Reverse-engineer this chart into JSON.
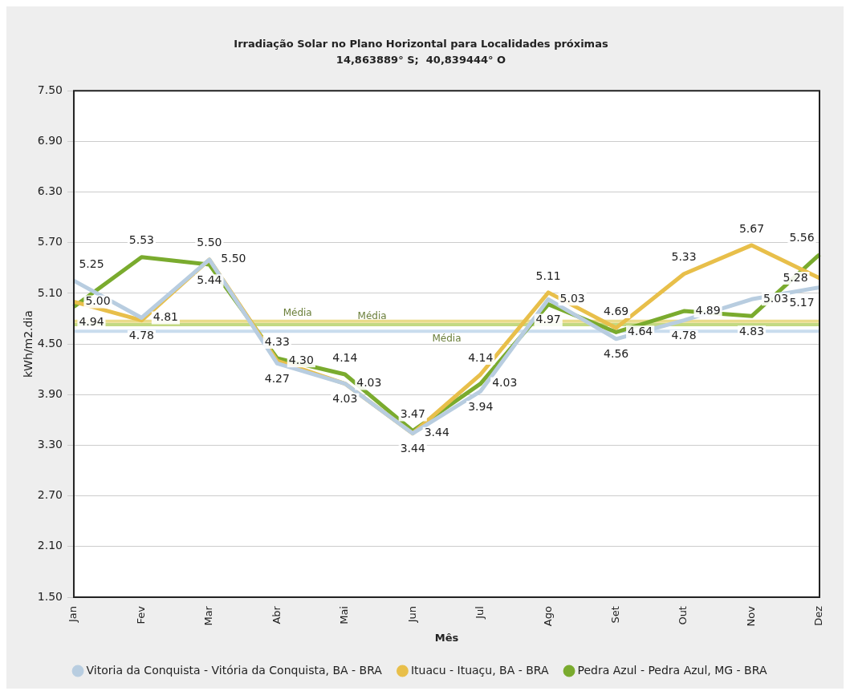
{
  "chart_data": {
    "type": "line",
    "title": "Irradiação Solar no Plano Horizontal para Localidades próximas",
    "subtitle": "14,863889° S;  40,839444° O",
    "xlabel": "Mês",
    "ylabel": "kWh/m2.dia",
    "categories": [
      "Jan",
      "Fev",
      "Mar",
      "Abr",
      "Mai",
      "Jun",
      "Jul",
      "Ago",
      "Set",
      "Out",
      "Nov",
      "Dez"
    ],
    "series": [
      {
        "name": "Vitoria da Conquista - Vitória da Conquista, BA - BRA",
        "color": "#b8cde0",
        "values": [
          5.25,
          4.81,
          5.5,
          4.27,
          4.03,
          3.44,
          3.94,
          5.03,
          4.56,
          4.78,
          5.03,
          5.17
        ],
        "value_labels": [
          "5.25",
          "4.81",
          "5.50",
          "4.27",
          "4.03",
          "3.44",
          "3.94",
          "5.03",
          "4.56",
          "4.78",
          "5.03",
          "5.17"
        ]
      },
      {
        "name": "Ituacu - Ituaçu, BA - BRA",
        "color": "#e8bf4a",
        "values": [
          5.0,
          4.78,
          5.5,
          4.3,
          4.03,
          3.44,
          4.14,
          5.11,
          4.69,
          5.33,
          5.67,
          5.28
        ],
        "value_labels": [
          "5.00",
          "4.78",
          "5.50",
          "4.30",
          "4.03",
          "3.44",
          "4.14",
          "5.11",
          "4.69",
          "5.33",
          "5.67",
          "5.28"
        ]
      },
      {
        "name": "Pedra Azul - Pedra Azul, MG - BRA",
        "color": "#7aab2e",
        "values": [
          4.94,
          5.53,
          5.44,
          4.33,
          4.14,
          3.47,
          4.03,
          4.97,
          4.64,
          4.89,
          4.83,
          5.56
        ],
        "value_labels": [
          "4.94",
          "5.53",
          "5.44",
          "4.33",
          "4.14",
          "3.47",
          "4.03",
          "4.97",
          "4.64",
          "4.89",
          "4.83",
          "5.56"
        ]
      }
    ],
    "ref_lines": [
      {
        "axis": "y",
        "value": 4.65,
        "label": "Média",
        "color": "#c9dcee"
      },
      {
        "axis": "y",
        "value": 4.77,
        "label": "Média",
        "color": "#eadb8a"
      },
      {
        "axis": "y",
        "value": 4.73,
        "label": "Média",
        "color": "#c3d982"
      }
    ],
    "ylim": [
      1.5,
      7.5
    ],
    "yticks": [
      "1.50",
      "2.10",
      "2.70",
      "3.30",
      "3.90",
      "4.50",
      "5.10",
      "5.70",
      "6.30",
      "6.90",
      "7.50"
    ],
    "grid": "y",
    "legend": "bottom",
    "marker": "none"
  }
}
